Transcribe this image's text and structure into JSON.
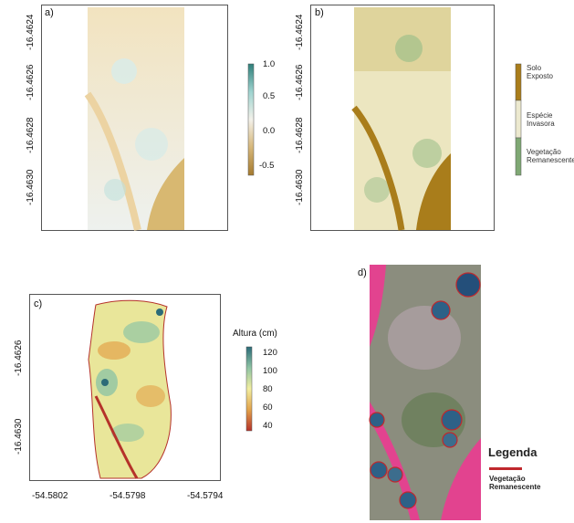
{
  "panels": {
    "a": {
      "label": "a)",
      "yticks": [
        "-16.4624",
        "-16.4626",
        "-16.4628",
        "-16.4630"
      ],
      "colorbar": {
        "ticks": [
          "1.0",
          "0.5",
          "0.0",
          "-0.5"
        ],
        "colors": [
          "#2f7f7a",
          "#9ed3cf",
          "#f3f1ea",
          "#d6b77a",
          "#a57a2e"
        ]
      }
    },
    "b": {
      "label": "b)",
      "yticks": [
        "-16.4624",
        "-16.4626",
        "-16.4628",
        "-16.4630"
      ],
      "legend": {
        "classes": [
          {
            "line1": "Solo",
            "line2": "Exposto",
            "color": "#a97d1b"
          },
          {
            "line1": "Espécie",
            "line2": "Invasora",
            "color": "#ece9cf"
          },
          {
            "line1": "Vegetação",
            "line2": "Remanescente",
            "color": "#7fa874"
          }
        ]
      }
    },
    "c": {
      "label": "c)",
      "yticks": [
        "-16.4626",
        "-16.4630"
      ],
      "xticks": [
        "-54.5802",
        "-54.5798",
        "-54.5794"
      ],
      "colorbar": {
        "title": "Altura (cm)",
        "ticks": [
          "120",
          "100",
          "80",
          "60",
          "40"
        ],
        "colors": [
          "#2b6b78",
          "#8fc4a4",
          "#f2eea0",
          "#e2a24a",
          "#b5322a"
        ]
      }
    },
    "d": {
      "label": "d)",
      "legend_title": "Legenda",
      "legend_item_line1": "Vegetação",
      "legend_item_line2": "Remanescente",
      "legend_color": "#c0282d"
    }
  }
}
